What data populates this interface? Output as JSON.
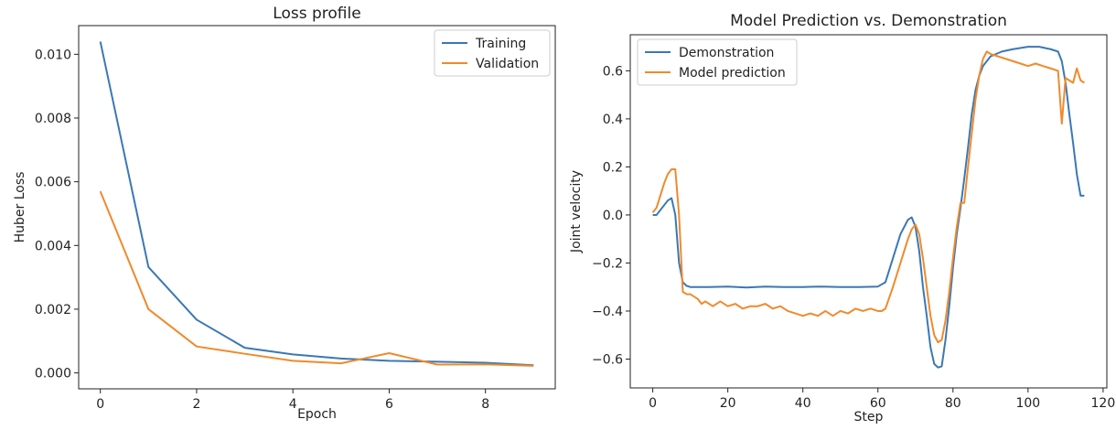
{
  "colors": {
    "series_1": "#3a78b5",
    "series_2": "#f08a2c"
  },
  "chart_data": [
    {
      "type": "line",
      "title": "Loss profile",
      "xlabel": "Epoch",
      "ylabel": "Huber Loss",
      "xlim": [
        -0.45,
        9.45
      ],
      "ylim": [
        -0.0005,
        0.0109
      ],
      "xticks": [
        0,
        2,
        4,
        6,
        8
      ],
      "xtick_labels": [
        "0",
        "2",
        "4",
        "6",
        "8"
      ],
      "yticks": [
        0.0,
        0.002,
        0.004,
        0.006,
        0.008,
        0.01
      ],
      "ytick_labels": [
        "0.000",
        "0.002",
        "0.004",
        "0.006",
        "0.008",
        "0.010"
      ],
      "legend_position": "top-right",
      "x": [
        0,
        1,
        2,
        3,
        4,
        5,
        6,
        7,
        8,
        9
      ],
      "series": [
        {
          "name": "Training",
          "values": [
            0.0104,
            0.00332,
            0.00167,
            0.00079,
            0.00058,
            0.00045,
            0.00038,
            0.00035,
            0.00032,
            0.00024
          ]
        },
        {
          "name": "Validation",
          "values": [
            0.0057,
            0.002,
            0.00083,
            0.0006,
            0.00038,
            0.0003,
            0.00062,
            0.00026,
            0.00027,
            0.00022
          ]
        }
      ]
    },
    {
      "type": "line",
      "title": "Model Prediction vs. Demonstration",
      "xlabel": "Step",
      "ylabel": "Joint velocity",
      "xlim": [
        -6,
        121
      ],
      "ylim": [
        -0.72,
        0.75
      ],
      "xticks": [
        0,
        20,
        40,
        60,
        80,
        100,
        120
      ],
      "xtick_labels": [
        "0",
        "20",
        "40",
        "60",
        "80",
        "100",
        "120"
      ],
      "yticks": [
        -0.6,
        -0.4,
        -0.2,
        0.0,
        0.2,
        0.4,
        0.6
      ],
      "ytick_labels": [
        "−0.6",
        "−0.4",
        "−0.2",
        "0.0",
        "0.2",
        "0.4",
        "0.6"
      ],
      "legend_position": "top-left",
      "series": [
        {
          "name": "Demonstration",
          "x": [
            0,
            1,
            2,
            3,
            4,
            5,
            6,
            7,
            8,
            9,
            10,
            12,
            15,
            20,
            25,
            30,
            35,
            40,
            45,
            50,
            55,
            60,
            62,
            64,
            66,
            68,
            69,
            70,
            71,
            72,
            73,
            74,
            75,
            76,
            77,
            78,
            79,
            80,
            81,
            82,
            83,
            84,
            85,
            86,
            87,
            88,
            89,
            90,
            93,
            96,
            100,
            103,
            106,
            108,
            109,
            110,
            111,
            112,
            113,
            114,
            115
          ],
          "values": [
            0.0,
            0.0,
            0.02,
            0.04,
            0.06,
            0.07,
            0.0,
            -0.2,
            -0.28,
            -0.295,
            -0.3,
            -0.3,
            -0.3,
            -0.298,
            -0.302,
            -0.298,
            -0.3,
            -0.3,
            -0.298,
            -0.3,
            -0.3,
            -0.298,
            -0.28,
            -0.18,
            -0.08,
            -0.02,
            -0.01,
            -0.05,
            -0.15,
            -0.3,
            -0.42,
            -0.55,
            -0.62,
            -0.635,
            -0.63,
            -0.52,
            -0.38,
            -0.22,
            -0.08,
            0.03,
            0.15,
            0.28,
            0.42,
            0.52,
            0.58,
            0.62,
            0.64,
            0.66,
            0.68,
            0.69,
            0.7,
            0.7,
            0.69,
            0.68,
            0.64,
            0.55,
            0.42,
            0.3,
            0.17,
            0.08,
            0.08
          ]
        },
        {
          "name": "Model prediction",
          "x": [
            0,
            1,
            2,
            3,
            4,
            5,
            6,
            7,
            8,
            9,
            10,
            11,
            12,
            13,
            14,
            16,
            18,
            20,
            22,
            24,
            26,
            28,
            30,
            32,
            34,
            36,
            38,
            40,
            42,
            44,
            46,
            48,
            50,
            52,
            54,
            56,
            58,
            60,
            61,
            62,
            64,
            66,
            68,
            69,
            70,
            71,
            72,
            73,
            74,
            75,
            76,
            77,
            78,
            79,
            80,
            81,
            82,
            83,
            84,
            85,
            86,
            87,
            88,
            89,
            90,
            92,
            94,
            96,
            98,
            100,
            102,
            104,
            106,
            108,
            109,
            110,
            111,
            112,
            113,
            114,
            115
          ],
          "values": [
            0.01,
            0.03,
            0.08,
            0.13,
            0.17,
            0.19,
            0.19,
            0.0,
            -0.32,
            -0.33,
            -0.33,
            -0.34,
            -0.35,
            -0.37,
            -0.36,
            -0.38,
            -0.36,
            -0.38,
            -0.37,
            -0.39,
            -0.38,
            -0.38,
            -0.37,
            -0.39,
            -0.38,
            -0.4,
            -0.41,
            -0.42,
            -0.41,
            -0.42,
            -0.4,
            -0.42,
            -0.4,
            -0.41,
            -0.39,
            -0.4,
            -0.39,
            -0.4,
            -0.4,
            -0.39,
            -0.3,
            -0.2,
            -0.1,
            -0.06,
            -0.04,
            -0.08,
            -0.18,
            -0.3,
            -0.42,
            -0.5,
            -0.53,
            -0.52,
            -0.44,
            -0.32,
            -0.18,
            -0.05,
            0.05,
            0.05,
            0.2,
            0.34,
            0.48,
            0.58,
            0.65,
            0.68,
            0.67,
            0.66,
            0.65,
            0.64,
            0.63,
            0.62,
            0.63,
            0.62,
            0.61,
            0.6,
            0.38,
            0.57,
            0.56,
            0.55,
            0.61,
            0.56,
            0.55
          ]
        }
      ]
    }
  ]
}
